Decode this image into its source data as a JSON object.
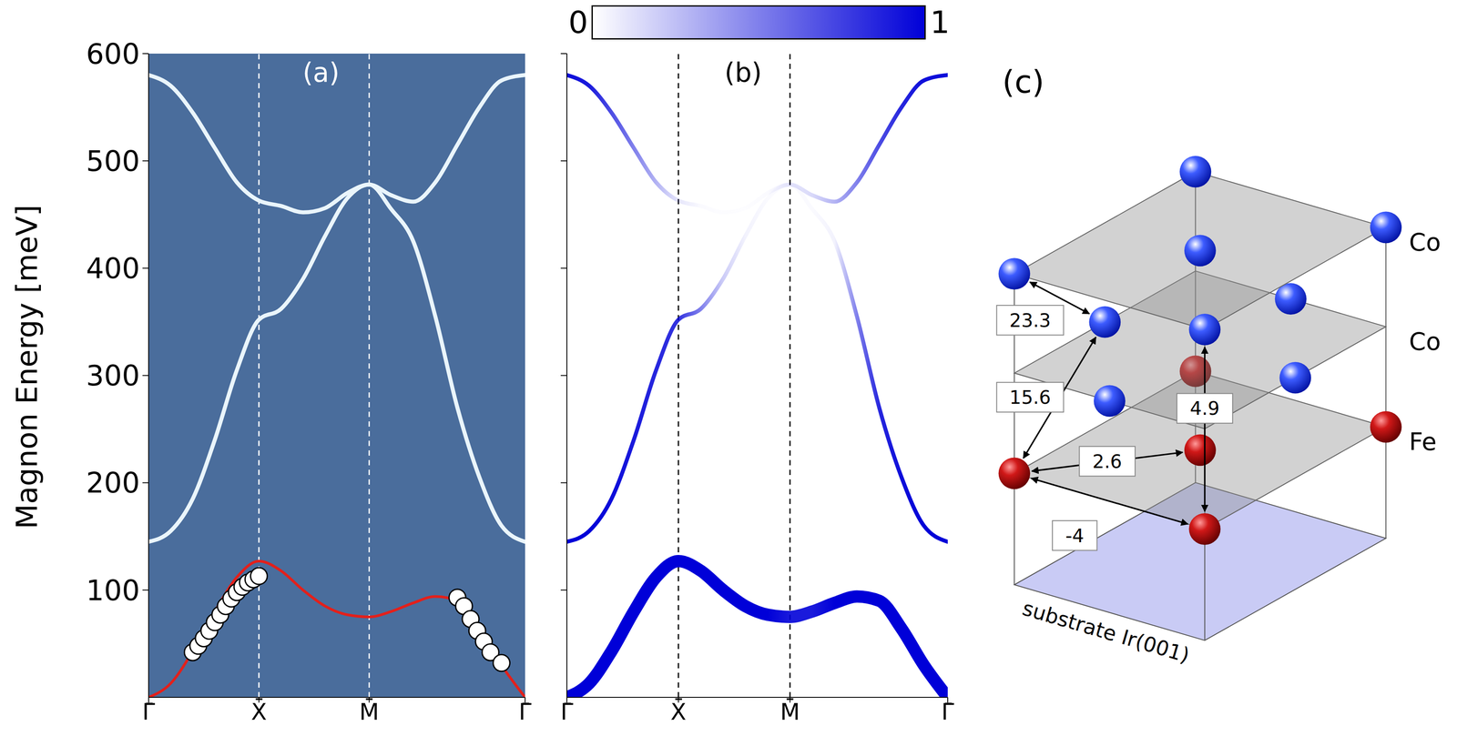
{
  "chart_data": [
    {
      "panel": "(a)",
      "type": "line",
      "y_label": "Magnon Energy [meV]",
      "xlim": [
        0,
        3.414
      ],
      "xticks": [
        {
          "value": 0,
          "label": "Γ̄"
        },
        {
          "value": 1,
          "label": "X̄"
        },
        {
          "value": 2,
          "label": "M̄"
        },
        {
          "value": 3.414,
          "label": "Γ̄"
        }
      ],
      "ylim": [
        0,
        600
      ],
      "yticks": [
        100,
        200,
        300,
        400,
        500,
        600
      ],
      "series": [
        {
          "color": "#eaf5fb",
          "x": [
            0,
            0.2,
            0.4,
            0.6,
            0.8,
            1.0,
            1.2,
            1.4,
            1.6,
            1.8,
            2.0,
            2.2,
            2.4,
            2.6,
            2.8,
            3.0,
            3.2,
            3.414
          ],
          "values": [
            145,
            155,
            185,
            240,
            305,
            352,
            362,
            390,
            430,
            465,
            478,
            455,
            425,
            355,
            270,
            205,
            160,
            145
          ]
        },
        {
          "color": "#eaf5fb",
          "x": [
            0,
            0.2,
            0.4,
            0.6,
            0.8,
            1.0,
            1.2,
            1.4,
            1.6,
            1.8,
            2.0,
            2.2,
            2.4,
            2.6,
            2.8,
            3.0,
            3.2,
            3.414
          ],
          "values": [
            580,
            570,
            545,
            512,
            480,
            463,
            458,
            452,
            456,
            470,
            478,
            468,
            462,
            480,
            515,
            550,
            575,
            580
          ]
        },
        {
          "color": "#e3201b",
          "x": [
            0,
            0.2,
            0.4,
            0.6,
            0.8,
            1.0,
            1.2,
            1.4,
            1.6,
            1.8,
            2.0,
            2.2,
            2.4,
            2.6,
            2.8,
            3.0,
            3.2,
            3.414
          ],
          "values": [
            0,
            13,
            43,
            80,
            112,
            127,
            118,
            100,
            85,
            77,
            75,
            80,
            88,
            94,
            90,
            64,
            30,
            0
          ]
        },
        {
          "type": "scatter",
          "marker": "circle",
          "color": "#ffffff",
          "x": [
            0.4,
            0.45,
            0.5,
            0.55,
            0.6,
            0.65,
            0.7,
            0.75,
            0.8,
            0.85,
            0.9,
            0.95,
            1.0,
            2.8,
            2.86,
            2.92,
            2.98,
            3.04,
            3.1,
            3.2
          ],
          "values": [
            42,
            48,
            55,
            62,
            70,
            77,
            85,
            92,
            98,
            103,
            107,
            110,
            113,
            93,
            85,
            73,
            62,
            52,
            42,
            32
          ]
        }
      ]
    },
    {
      "panel": "(b)",
      "type": "line",
      "tick_labels": "x",
      "xlim": [
        0,
        3.414
      ],
      "xticks": [
        {
          "value": 0,
          "label": "Γ̄"
        },
        {
          "value": 1,
          "label": "X̄"
        },
        {
          "value": 2,
          "label": "M̄"
        },
        {
          "value": 3.414,
          "label": "Γ̄"
        }
      ],
      "ylim": [
        0,
        600
      ],
      "yticks": [
        100,
        200,
        300,
        400,
        500,
        600
      ],
      "colorbar": {
        "range": [
          0,
          1
        ],
        "ticks": [
          0,
          1
        ]
      },
      "series": [
        {
          "color": "#0000d8",
          "x": [
            0,
            0.2,
            0.4,
            0.6,
            0.8,
            1.0,
            1.2,
            1.4,
            1.6,
            1.8,
            2.0,
            2.2,
            2.4,
            2.6,
            2.8,
            3.0,
            3.2,
            3.414
          ],
          "values": [
            0,
            13,
            43,
            80,
            112,
            127,
            118,
            100,
            85,
            77,
            75,
            80,
            88,
            94,
            90,
            64,
            30,
            0
          ],
          "intensity": [
            1,
            1,
            1,
            1,
            1,
            1,
            1,
            1,
            1,
            1,
            0.9,
            0.9,
            1,
            1,
            1,
            1,
            1,
            1
          ]
        },
        {
          "color": "#0000d8",
          "x": [
            0,
            0.2,
            0.4,
            0.6,
            0.8,
            1.0,
            1.2,
            1.4,
            1.6,
            1.8,
            2.0,
            2.2,
            2.4,
            2.6,
            2.8,
            3.0,
            3.2,
            3.414
          ],
          "values": [
            145,
            155,
            185,
            240,
            305,
            352,
            362,
            390,
            430,
            465,
            478,
            455,
            425,
            355,
            270,
            205,
            160,
            145
          ],
          "intensity": [
            1,
            1,
            0.95,
            0.9,
            0.85,
            0.8,
            0.5,
            0.2,
            0.05,
            0.02,
            0.02,
            0.02,
            0.05,
            0.5,
            0.85,
            0.95,
            1,
            1
          ]
        },
        {
          "color": "#0000d8",
          "x": [
            0,
            0.2,
            0.4,
            0.6,
            0.8,
            1.0,
            1.2,
            1.4,
            1.6,
            1.8,
            2.0,
            2.2,
            2.4,
            2.6,
            2.8,
            3.0,
            3.2,
            3.414
          ],
          "values": [
            580,
            570,
            545,
            512,
            480,
            463,
            458,
            452,
            456,
            470,
            478,
            468,
            462,
            480,
            515,
            550,
            575,
            580
          ],
          "intensity": [
            0.95,
            0.9,
            0.7,
            0.5,
            0.3,
            0.1,
            0.02,
            0.01,
            0.01,
            0.02,
            0.1,
            0.15,
            0.3,
            0.5,
            0.7,
            0.85,
            0.95,
            0.95
          ]
        }
      ]
    }
  ],
  "diagram": {
    "panel": "(c)",
    "layer_labels": [
      "Co",
      "Co",
      "Fe"
    ],
    "substrate": "substrate Ir(001)",
    "exchange_couplings": [
      23.3,
      15.6,
      2.6,
      -4,
      4.9
    ]
  }
}
